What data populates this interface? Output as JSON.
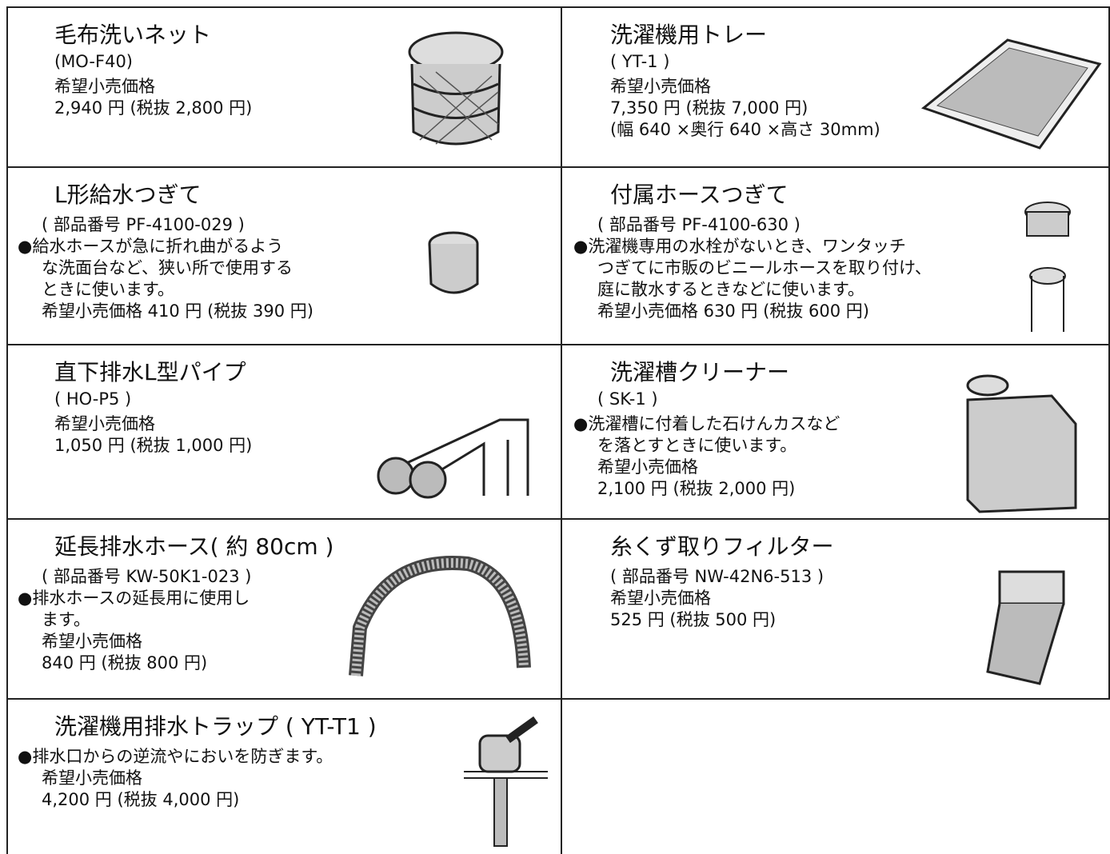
{
  "items": [
    {
      "title": "毛布洗いネット",
      "lines": [
        "(MO-F40)",
        "希望小売価格",
        "2,940 円 (税抜 2,800 円)"
      ]
    },
    {
      "title": "洗濯機用トレー",
      "lines": [
        "( YT-1 )",
        "希望小売価格",
        "7,350 円 (税抜 7,000 円)",
        "(幅 640 ×奥行 640 ×高さ 30mm)"
      ]
    },
    {
      "title": "L形給水つぎて",
      "lines": [
        "( 部品番号 PF-4100-029 )",
        "●給水ホースが急に折れ曲がるよう",
        "な洗面台など、狭い所で使用する",
        "ときに使います。",
        "希望小売価格 410 円 (税抜 390 円)"
      ]
    },
    {
      "title": "付属ホースつぎて",
      "lines": [
        "( 部品番号 PF-4100-630 )",
        "●洗濯機専用の水栓がないとき、ワンタッチ",
        "つぎてに市販のビニールホースを取り付け、",
        "庭に散水するときなどに使います。",
        "希望小売価格 630 円 (税抜 600 円)"
      ]
    },
    {
      "title": "直下排水L型パイプ",
      "lines": [
        "( HO-P5 )",
        "希望小売価格",
        "1,050 円 (税抜 1,000 円)"
      ]
    },
    {
      "title": "洗濯槽クリーナー",
      "lines": [
        "( SK-1 )",
        "●洗濯槽に付着した石けんカスなど",
        "を落とすときに使います。",
        "希望小売価格",
        "2,100 円 (税抜 2,000 円)"
      ]
    },
    {
      "title": "延長排水ホース( 約 80cm )",
      "lines": [
        "( 部品番号 KW-50K1-023 )",
        "●排水ホースの延長用に使用し",
        "ます。",
        "希望小売価格",
        "840 円 (税抜 800 円)"
      ]
    },
    {
      "title": "糸くず取りフィルター",
      "lines": [
        "( 部品番号 NW-42N6-513 )",
        "希望小売価格",
        "525 円 (税抜 500 円)"
      ]
    },
    {
      "title": "洗濯機用排水トラップ ( YT-T1 )",
      "lines": [
        "●排水口からの逆流やにおいを防ぎます。",
        "希望小売価格",
        "4,200 円 (税抜 4,000 円)"
      ]
    }
  ]
}
